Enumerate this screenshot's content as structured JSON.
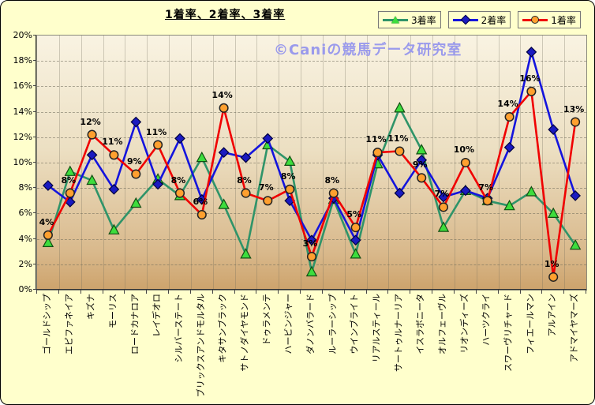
{
  "title": "1着率、2着率、3着率",
  "watermark": "©Caniの競馬データ研究室",
  "legend": {
    "items": [
      {
        "label": "3着率",
        "marker": "triangle",
        "color": "#2f9469"
      },
      {
        "label": "2着率",
        "marker": "diamond",
        "color": "#1414dd"
      },
      {
        "label": "1着率",
        "marker": "circle",
        "color": "#f00000"
      }
    ]
  },
  "y_axis": {
    "labels": [
      "0%",
      "2%",
      "4%",
      "6%",
      "8%",
      "10%",
      "12%",
      "14%",
      "16%",
      "18%",
      "20%"
    ],
    "min": 0,
    "max": 20,
    "step": 2
  },
  "chart_data": {
    "type": "line",
    "title": "1着率、2着率、3着率",
    "ylim": [
      0,
      20
    ],
    "grid": true,
    "legend_position": "top-right",
    "categories": [
      "ゴールドシップ",
      "エピファネイア",
      "キズナ",
      "モーリス",
      "ロードカナロア",
      "レイデオロ",
      "シルバーステート",
      "ブリックスアンドモルタル",
      "キタサンブラック",
      "サトノダイヤモンド",
      "ドゥラメンテ",
      "ハービンジャー",
      "ダノンバラード",
      "ルーラーシップ",
      "ウインブライト",
      "リアルスティール",
      "サートゥルナーリア",
      "イスラボニータ",
      "オルフェーヴル",
      "リオンディーズ",
      "ハーツクライ",
      "スワーヴリチャード",
      "フィエールマン",
      "アルアイン",
      "アドマイヤマーズ"
    ],
    "series": [
      {
        "name": "3着率",
        "marker": "triangle",
        "line_color": "#2f9469",
        "marker_fill": "#3ddd3d",
        "marker_stroke": "#124d12",
        "values": [
          3.7,
          9.3,
          8.6,
          4.7,
          6.8,
          8.7,
          7.4,
          10.4,
          6.7,
          2.8,
          11.4,
          10.1,
          1.4,
          7.1,
          2.8,
          9.9,
          14.3,
          11.0,
          4.9,
          7.8,
          7.0,
          6.6,
          7.7,
          6.0,
          3.5
        ]
      },
      {
        "name": "2着率",
        "marker": "diamond",
        "line_color": "#1414dd",
        "marker_fill": "#1a1ac0",
        "marker_stroke": "#000040",
        "values": [
          8.2,
          6.9,
          10.6,
          7.9,
          13.2,
          8.3,
          11.9,
          7.1,
          10.8,
          10.4,
          11.9,
          7.0,
          3.9,
          7.2,
          3.9,
          10.6,
          7.6,
          10.2,
          7.3,
          7.8,
          7.2,
          11.2,
          18.7,
          12.6,
          7.4
        ]
      },
      {
        "name": "1着率",
        "marker": "circle",
        "line_color": "#f00000",
        "marker_fill": "#ffa02f",
        "marker_stroke": "#222222",
        "values": [
          4.3,
          7.6,
          12.2,
          10.6,
          9.1,
          11.4,
          7.6,
          5.9,
          14.3,
          7.6,
          7.0,
          7.9,
          2.6,
          7.6,
          4.9,
          10.8,
          10.9,
          8.8,
          6.5,
          10.0,
          7.0,
          13.6,
          15.6,
          1.0,
          13.2
        ],
        "data_labels": [
          "4%",
          "8%",
          "12%",
          "11%",
          "9%",
          "11%",
          "8%",
          "6%",
          "14%",
          "8%",
          "7%",
          "8%",
          "3%",
          "8%",
          "5%",
          "11%",
          "11%",
          "9%",
          "7%",
          "10%",
          "7%",
          "14%",
          "16%",
          "1%",
          "13%"
        ]
      }
    ]
  }
}
